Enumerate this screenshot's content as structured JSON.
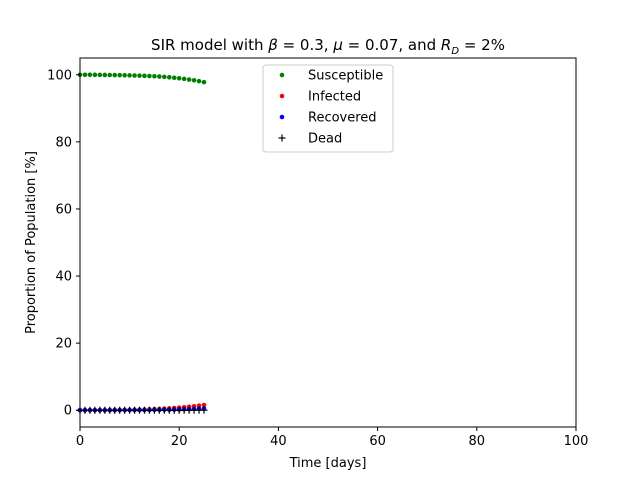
{
  "chart_data": {
    "type": "scatter",
    "title": {
      "prefix": "SIR model with ",
      "beta_symbol": "β",
      "beta_value": " = 0.3, ",
      "mu_symbol": "μ",
      "mu_value": " = 0.07, and ",
      "rd_symbol": "R",
      "rd_sub": "D",
      "rd_value": " = 2%"
    },
    "xlabel": "Time [days]",
    "ylabel": "Proportion of Population [%]",
    "xlim": [
      0,
      100
    ],
    "ylim": [
      -5,
      105
    ],
    "xticks": [
      0,
      20,
      40,
      60,
      80,
      100
    ],
    "yticks": [
      0,
      20,
      40,
      60,
      80,
      100
    ],
    "grid": false,
    "legend_position": "top-center",
    "x": [
      0,
      1,
      2,
      3,
      4,
      5,
      6,
      7,
      8,
      9,
      10,
      11,
      12,
      13,
      14,
      15,
      16,
      17,
      18,
      19,
      20,
      21,
      22,
      23,
      24,
      25
    ],
    "series": [
      {
        "name": "Susceptible",
        "color": "#008000",
        "marker": "dot",
        "values": [
          100.0,
          100.0,
          99.99,
          99.98,
          99.97,
          99.95,
          99.93,
          99.91,
          99.88,
          99.85,
          99.82,
          99.78,
          99.74,
          99.69,
          99.63,
          99.56,
          99.47,
          99.37,
          99.25,
          99.11,
          98.95,
          98.77,
          98.57,
          98.35,
          98.1,
          97.8
        ]
      },
      {
        "name": "Infected",
        "color": "#ff0000",
        "marker": "dot",
        "values": [
          0.01,
          0.01,
          0.02,
          0.02,
          0.03,
          0.04,
          0.05,
          0.06,
          0.08,
          0.1,
          0.12,
          0.15,
          0.18,
          0.22,
          0.27,
          0.32,
          0.38,
          0.46,
          0.55,
          0.65,
          0.76,
          0.89,
          1.03,
          1.18,
          1.35,
          1.55
        ]
      },
      {
        "name": "Recovered",
        "color": "#0000ff",
        "marker": "dot",
        "values": [
          0.0,
          0.0,
          0.0,
          0.0,
          0.0,
          0.01,
          0.01,
          0.01,
          0.02,
          0.02,
          0.03,
          0.04,
          0.05,
          0.06,
          0.07,
          0.09,
          0.11,
          0.13,
          0.16,
          0.19,
          0.23,
          0.28,
          0.33,
          0.39,
          0.45,
          0.53
        ]
      },
      {
        "name": "Dead",
        "color": "#000000",
        "marker": "plus",
        "values": [
          0.0,
          0.0,
          0.0,
          0.0,
          0.0,
          0.0,
          0.0,
          0.0,
          0.0,
          0.0,
          0.0,
          0.0,
          0.0,
          0.0,
          0.0,
          0.0,
          0.0,
          0.0,
          0.0,
          0.0,
          0.0,
          0.01,
          0.01,
          0.01,
          0.01,
          0.01
        ]
      }
    ]
  }
}
